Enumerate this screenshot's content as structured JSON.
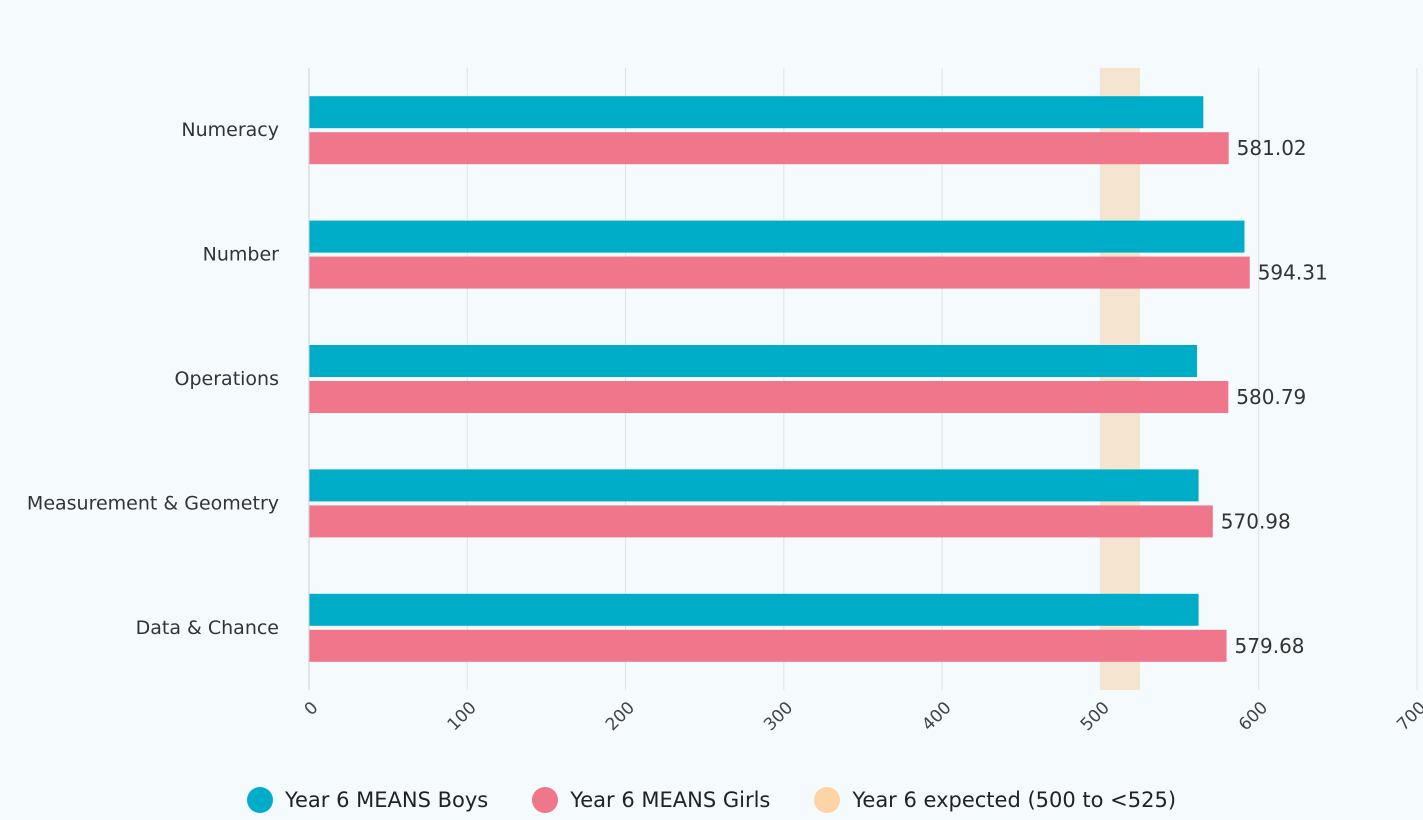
{
  "chart_data": {
    "type": "bar",
    "orientation": "horizontal",
    "categories": [
      "Numeracy",
      "Number",
      "Operations",
      "Measurement & Geometry",
      "Data & Chance"
    ],
    "series": [
      {
        "name": "Year 6 MEANS Boys",
        "color": "#00adc8",
        "values": [
          565,
          591,
          561,
          562,
          562
        ]
      },
      {
        "name": "Year 6 MEANS Girls",
        "color": "#f0768b",
        "values": [
          581.02,
          594.31,
          580.79,
          570.98,
          579.68
        ]
      }
    ],
    "data_labels": [
      "581.02",
      "594.31",
      "580.79",
      "570.98",
      "579.68"
    ],
    "band": {
      "name": "Year 6 expected (500 to <525)",
      "from": 500,
      "to": 525,
      "color": "#f5e4d0",
      "legend_color": "#fdd4a6"
    },
    "x_ticks": [
      "0",
      "100",
      "200",
      "300",
      "400",
      "500",
      "600",
      "700"
    ],
    "xlim": [
      0,
      700
    ],
    "grid": true,
    "legend_position": "bottom"
  }
}
